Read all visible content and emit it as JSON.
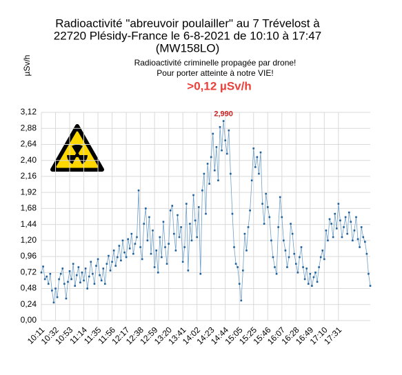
{
  "chart_data": {
    "type": "line",
    "title": [
      "Radioactivité \"abreuvoir poulailler\" au 7 Trévelost à",
      "22720 Plésidy-France le 6-8-2021 de 10:10 à 17:47",
      "(MW158LO)"
    ],
    "subtitle": [
      "Radioactivité criminelle propagée par drone!",
      "Pour porter atteinte à notre VIE!"
    ],
    "annotation": ">0,12 µSv/h",
    "y_label": "µSv/h",
    "ylim": [
      0,
      3.12
    ],
    "yticks": [
      {
        "value": 0,
        "label": "0,00"
      },
      {
        "value": 0.24,
        "label": "0,24"
      },
      {
        "value": 0.48,
        "label": "0,48"
      },
      {
        "value": 0.72,
        "label": "0,72"
      },
      {
        "value": 0.96,
        "label": "0,96"
      },
      {
        "value": 1.2,
        "label": "1,20"
      },
      {
        "value": 1.44,
        "label": "1,44"
      },
      {
        "value": 1.68,
        "label": "1,68"
      },
      {
        "value": 1.92,
        "label": "1,92"
      },
      {
        "value": 2.16,
        "label": "2,16"
      },
      {
        "value": 2.4,
        "label": "2,40"
      },
      {
        "value": 2.64,
        "label": "2,64"
      },
      {
        "value": 2.88,
        "label": "2,88"
      },
      {
        "value": 3.12,
        "label": "3,12"
      }
    ],
    "grid": true,
    "color": "#1f5f9a",
    "line_color": "#6f9fc8",
    "categories": [
      "10:11",
      null,
      null,
      null,
      null,
      null,
      null,
      null,
      "10:32",
      null,
      null,
      null,
      null,
      null,
      null,
      null,
      "10:53",
      null,
      null,
      null,
      null,
      null,
      null,
      null,
      "11:14",
      null,
      null,
      null,
      null,
      null,
      null,
      null,
      "11:35",
      null,
      null,
      null,
      null,
      null,
      null,
      null,
      "11:56",
      null,
      null,
      null,
      null,
      null,
      null,
      null,
      "12:17",
      null,
      null,
      null,
      null,
      null,
      null,
      null,
      "12:38",
      null,
      null,
      null,
      null,
      null,
      null,
      null,
      "12:59",
      null,
      null,
      null,
      null,
      null,
      null,
      null,
      "13:20",
      null,
      null,
      null,
      null,
      null,
      null,
      null,
      "13:41",
      null,
      null,
      null,
      null,
      null,
      null,
      null,
      "14:02",
      null,
      null,
      null,
      null,
      null,
      null,
      null,
      "14:23",
      null,
      null,
      null,
      null,
      null,
      null,
      null,
      "14:44",
      null,
      null,
      null,
      null,
      null,
      null,
      null,
      "15:05",
      null,
      null,
      null,
      null,
      null,
      null,
      null,
      "15:25",
      null,
      null,
      null,
      null,
      null,
      null,
      null,
      "15:46",
      null,
      null,
      null,
      null,
      null,
      null,
      null,
      "16:07",
      null,
      null,
      null,
      null,
      null,
      null,
      null,
      "16:28",
      null,
      null,
      null,
      null,
      null,
      null,
      null,
      "16:49",
      null,
      null,
      null,
      null,
      null,
      null,
      null,
      "17:10",
      null,
      null,
      null,
      null,
      null,
      null,
      null,
      "17:31",
      null,
      null,
      null,
      null,
      null,
      null,
      null,
      null,
      null,
      null,
      null,
      null,
      null,
      null,
      null,
      null,
      null,
      null
    ],
    "values": [
      0.72,
      0.81,
      0.62,
      0.66,
      0.55,
      0.7,
      0.45,
      0.27,
      0.48,
      0.35,
      0.62,
      0.7,
      0.78,
      0.55,
      0.33,
      0.58,
      0.74,
      0.62,
      0.85,
      0.52,
      0.68,
      0.8,
      0.57,
      0.72,
      0.6,
      0.78,
      0.48,
      0.66,
      0.88,
      0.7,
      0.55,
      0.82,
      0.92,
      0.68,
      0.6,
      0.78,
      0.55,
      0.85,
      0.97,
      0.75,
      0.88,
      1.05,
      0.82,
      0.95,
      1.12,
      0.9,
      1.2,
      1.02,
      0.95,
      1.22,
      1.08,
      1.3,
      1.0,
      1.15,
      1.25,
      1.95,
      1.1,
      0.92,
      1.45,
      1.68,
      1.2,
      1.55,
      1.0,
      1.35,
      0.8,
      1.05,
      0.72,
      1.25,
      0.95,
      1.48,
      1.1,
      0.85,
      1.15,
      1.65,
      1.72,
      1.3,
      1.05,
      1.58,
      1.25,
      1.4,
      0.88,
      1.1,
      1.75,
      0.75,
      1.45,
      1.2,
      1.88,
      1.5,
      1.25,
      1.7,
      0.7,
      1.95,
      2.2,
      1.6,
      2.35,
      2.05,
      2.45,
      2.8,
      2.25,
      2.6,
      2.1,
      2.9,
      2.55,
      2.99,
      2.7,
      2.5,
      2.85,
      2.2,
      1.6,
      1.1,
      0.85,
      0.8,
      0.55,
      0.3,
      0.75,
      1.3,
      1.05,
      1.4,
      1.65,
      2.1,
      2.58,
      2.3,
      2.45,
      2.2,
      2.52,
      1.75,
      1.45,
      1.9,
      1.7,
      1.55,
      1.2,
      0.95,
      0.8,
      0.7,
      1.4,
      1.85,
      1.55,
      1.2,
      1.05,
      0.8,
      0.95,
      1.45,
      1.3,
      1.0,
      0.85,
      0.72,
      0.95,
      1.1,
      0.8,
      0.62,
      0.78,
      0.55,
      0.7,
      0.52,
      0.65,
      0.72,
      0.58,
      0.8,
      0.95,
      1.05,
      0.92,
      1.35,
      1.2,
      1.52,
      1.45,
      1.25,
      1.6,
      1.38,
      1.75,
      1.5,
      1.25,
      1.4,
      1.55,
      1.3,
      1.62,
      1.48,
      1.2,
      1.35,
      1.55,
      1.22,
      1.1,
      1.4,
      1.25,
      1.18,
      1.0,
      0.7,
      0.52
    ],
    "value_labels": [
      null,
      null,
      null,
      null,
      null,
      null,
      null,
      null,
      null,
      null,
      null,
      null,
      null,
      null,
      null,
      null,
      null,
      null,
      null,
      null,
      null,
      null,
      null,
      null,
      null,
      null,
      null,
      null,
      null,
      null,
      null,
      null,
      null,
      null,
      null,
      null,
      null,
      null,
      null,
      null,
      null,
      null,
      null,
      null,
      null,
      null,
      null,
      null,
      null,
      null,
      null,
      null,
      null,
      null,
      null,
      null,
      null,
      null,
      null,
      null,
      null,
      null,
      null,
      null,
      null,
      null,
      null,
      null,
      null,
      null,
      null,
      null,
      null,
      null,
      null,
      null,
      null,
      null,
      null,
      null,
      null,
      null,
      null,
      null,
      null,
      null,
      null,
      null,
      null,
      null,
      null,
      null,
      null,
      null,
      null,
      null,
      null,
      null,
      null,
      null,
      null,
      null,
      null,
      "2,990",
      null,
      null,
      null,
      null,
      null,
      null,
      null,
      null,
      null,
      null,
      null,
      null,
      null,
      null,
      null,
      null,
      null,
      null,
      null,
      null,
      null,
      null,
      null,
      null,
      null,
      null,
      null,
      null,
      null,
      null,
      null,
      null,
      null,
      null,
      null,
      null,
      null,
      null,
      null,
      null,
      null,
      null,
      null,
      null,
      null,
      null,
      null,
      null,
      null,
      null,
      null,
      null,
      null,
      null,
      null,
      null,
      null,
      null,
      null,
      null,
      null,
      null,
      null,
      null,
      null,
      null,
      null,
      null,
      null,
      null,
      null,
      null,
      null,
      null,
      null,
      null,
      null,
      null,
      null,
      null,
      null,
      null,
      null
    ]
  }
}
